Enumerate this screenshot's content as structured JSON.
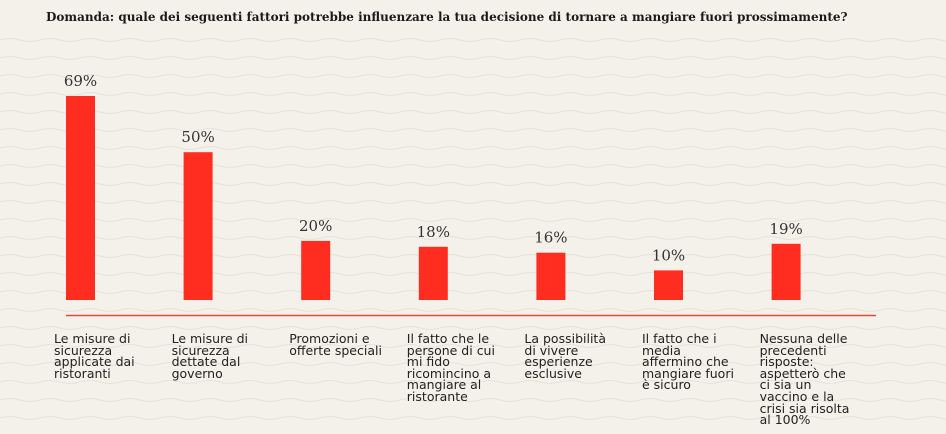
{
  "question": "Domanda: quale dei seguenti fattori potrebbe influenzare la tua decisione di tornare a mangiare fuori prossimamente?",
  "colors": {
    "bar": "#ff2d20",
    "axis": "#e74a3b",
    "background": "#f3f1e9"
  },
  "chart_data": {
    "type": "bar",
    "title": "",
    "xlabel": "",
    "ylabel": "",
    "categories": [
      "Le misure di sicurezza applicate dai ristoranti",
      "Le misure di sicurezza dettate dal governo",
      "Promozioni e offerte speciali",
      "Il fatto che le persone di cui mi fido ricomincino a mangiare al ristorante",
      "La possibilità di vivere esperienze esclusive",
      "Il fatto che i media affermino che mangiare fuori è sicuro",
      "Nessuna delle precedenti risposte: aspetterò che ci sia un vaccino e la crisi sia risolta al 100%"
    ],
    "values": [
      69,
      50,
      20,
      18,
      16,
      10,
      19
    ],
    "value_labels": [
      "69%",
      "50%",
      "20%",
      "18%",
      "16%",
      "10%",
      "19%"
    ],
    "ylim": [
      0,
      69
    ]
  }
}
